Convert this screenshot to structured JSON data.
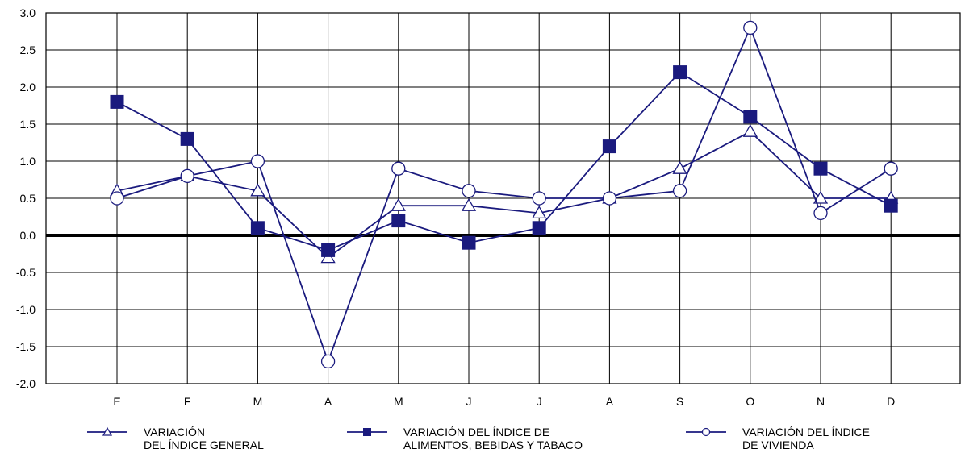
{
  "chart_data": {
    "type": "line",
    "title": "",
    "xlabel": "",
    "ylabel": "",
    "categories": [
      "E",
      "F",
      "M",
      "A",
      "M",
      "J",
      "J",
      "A",
      "S",
      "O",
      "N",
      "D"
    ],
    "ylim": [
      -2.0,
      3.0
    ],
    "yticks": [
      "-2.0",
      "-1.5",
      "-1.0",
      "-0.5",
      "0.0",
      "0.5",
      "1.0",
      "1.5",
      "2.0",
      "2.5",
      "3.0"
    ],
    "grid": true,
    "legend_position": "bottom",
    "series": [
      {
        "name_line1": "VARIACIÓN",
        "name_line2": "DEL ÍNDICE GENERAL",
        "marker": "triangle-open",
        "values": [
          0.6,
          0.8,
          0.6,
          -0.3,
          0.4,
          0.4,
          0.3,
          0.5,
          0.9,
          1.4,
          0.5,
          0.5
        ]
      },
      {
        "name_line1": "VARIACIÓN DEL ÍNDICE DE",
        "name_line2": "ALIMENTOS, BEBIDAS Y TABACO",
        "marker": "square-filled",
        "values": [
          1.8,
          1.3,
          0.1,
          -0.2,
          0.2,
          -0.1,
          0.1,
          1.2,
          2.2,
          1.6,
          0.9,
          0.4
        ]
      },
      {
        "name_line1": "VARIACIÓN DEL ÍNDICE",
        "name_line2": "DE VIVIENDA",
        "marker": "circle-open",
        "values": [
          0.5,
          0.8,
          1.0,
          -1.7,
          0.9,
          0.6,
          0.5,
          0.5,
          0.6,
          2.8,
          0.3,
          0.9
        ]
      }
    ],
    "colors": {
      "series": "#1a1a7e",
      "grid": "#000000",
      "zero_line": "#000000"
    }
  }
}
